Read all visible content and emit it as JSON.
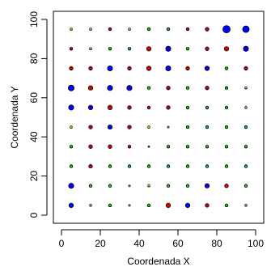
{
  "chart_data": {
    "type": "scatter",
    "title": "",
    "xlabel": "Coordenada X",
    "ylabel": "Coordenada Y",
    "xlim": [
      0,
      100
    ],
    "ylim": [
      0,
      100
    ],
    "x_ticks": [
      0,
      20,
      40,
      60,
      80,
      100
    ],
    "y_ticks": [
      0,
      20,
      40,
      60,
      80,
      100
    ],
    "x_tick_labels": [
      "0",
      "20",
      "40",
      "60",
      "80",
      "100"
    ],
    "y_tick_labels": [
      "0",
      "20",
      "40",
      "60",
      "80",
      "100"
    ],
    "grid": false,
    "legend": "none",
    "colors": {
      "y": "#ffff00",
      "g": "#00cc00",
      "r": "#dd0000",
      "b": "#0000ff"
    },
    "x_values": [
      5,
      15,
      25,
      35,
      45,
      55,
      65,
      75,
      85,
      95
    ],
    "y_values": [
      5,
      15,
      25,
      35,
      45,
      55,
      65,
      75,
      85,
      95
    ],
    "size_scale": "relative magnitude (1 smallest, 5 largest)",
    "rows": [
      {
        "y": 95,
        "colors": [
          "y",
          "y",
          "r",
          "y",
          "g",
          "g",
          "r",
          "r",
          "b",
          "b"
        ],
        "sizes": [
          1.5,
          1.5,
          2,
          1.5,
          2,
          2,
          2,
          2.5,
          5,
          4.5
        ]
      },
      {
        "y": 85,
        "colors": [
          "r",
          "y",
          "g",
          "g",
          "r",
          "b",
          "g",
          "r",
          "r",
          "b"
        ],
        "sizes": [
          2,
          1.5,
          2,
          2,
          3,
          3.5,
          2,
          2.5,
          3,
          3.5
        ]
      },
      {
        "y": 75,
        "colors": [
          "r",
          "r",
          "b",
          "r",
          "r",
          "b",
          "r",
          "b",
          "g",
          "r"
        ],
        "sizes": [
          2.5,
          2.5,
          3.5,
          2.5,
          3,
          3.5,
          2.5,
          3,
          2,
          2.5
        ]
      },
      {
        "y": 65,
        "colors": [
          "b",
          "r",
          "b",
          "b",
          "g",
          "r",
          "g",
          "r",
          "g",
          "y"
        ],
        "sizes": [
          4,
          3,
          3.5,
          3.5,
          2,
          2.5,
          2,
          2.5,
          1.8,
          1.5
        ]
      },
      {
        "y": 55,
        "colors": [
          "b",
          "b",
          "r",
          "r",
          "r",
          "r",
          "g",
          "g",
          "g",
          "y"
        ],
        "sizes": [
          3.5,
          3,
          3,
          2.5,
          2,
          2.5,
          2,
          2,
          1.8,
          1.5
        ]
      },
      {
        "y": 45,
        "colors": [
          "y",
          "r",
          "b",
          "r",
          "y",
          "y",
          "g",
          "g",
          "g",
          "g"
        ],
        "sizes": [
          1.5,
          2.5,
          3,
          2.5,
          1.5,
          1.2,
          1.8,
          2,
          2,
          2
        ]
      },
      {
        "y": 35,
        "colors": [
          "g",
          "r",
          "r",
          "r",
          "g",
          "g",
          "g",
          "g",
          "g",
          "g"
        ],
        "sizes": [
          2,
          2.5,
          2.5,
          2,
          1,
          2,
          2,
          2,
          2,
          2
        ]
      },
      {
        "y": 25,
        "colors": [
          "g",
          "r",
          "g",
          "g",
          "g",
          "g",
          "g",
          "g",
          "g",
          "g"
        ],
        "sizes": [
          2,
          2.5,
          2,
          2,
          2,
          2,
          2,
          2,
          2,
          2
        ]
      },
      {
        "y": 15,
        "colors": [
          "b",
          "g",
          "g",
          "y",
          "y",
          "g",
          "g",
          "b",
          "r",
          "g"
        ],
        "sizes": [
          3.5,
          2,
          2,
          1.2,
          1.5,
          2,
          2,
          3,
          2.5,
          2
        ]
      },
      {
        "y": 5,
        "colors": [
          "b",
          "y",
          "g",
          "y",
          "g",
          "r",
          "b",
          "r",
          "g",
          "y"
        ],
        "sizes": [
          3,
          1.5,
          2,
          1.2,
          2,
          3,
          3,
          2.5,
          2,
          1.5
        ]
      }
    ]
  }
}
